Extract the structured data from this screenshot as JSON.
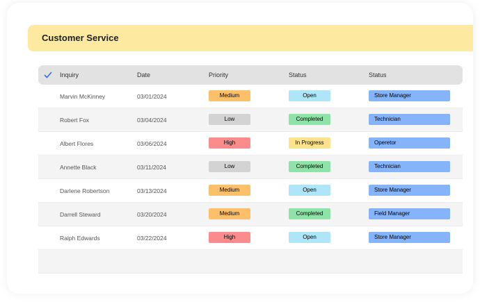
{
  "title": "Customer Service",
  "columns": [
    "Inquiry",
    "Date",
    "Priority",
    "Status",
    "Status"
  ],
  "colors": {
    "priority": {
      "Medium": "#fdc06a",
      "Low": "#d3d3d3",
      "High": "#fc8c8c"
    },
    "status": {
      "Open": "#aee5f8",
      "Completed": "#8fe3a8",
      "In Progress": "#fde38c"
    },
    "role": "#85b4fb"
  },
  "rows": [
    {
      "name": "Marvin McKinney",
      "date": "03/01/2024",
      "priority": "Medium",
      "status": "Open",
      "role": "Store Manager"
    },
    {
      "name": "Robert Fox",
      "date": "03/04/2024",
      "priority": "Low",
      "status": "Completed",
      "role": "Technician"
    },
    {
      "name": "Albert Flores",
      "date": "03/06/2024",
      "priority": "High",
      "status": "In Progress",
      "role": "Operetor"
    },
    {
      "name": "Annette Black",
      "date": "03/11/2024",
      "priority": "Low",
      "status": "Completed",
      "role": "Technician"
    },
    {
      "name": "Darlene Robertson",
      "date": "03/13/2024",
      "priority": "Medium",
      "status": "Open",
      "role": "Store Manager"
    },
    {
      "name": "Darrell Steward",
      "date": "03/20/2024",
      "priority": "Medium",
      "status": "Completed",
      "role": "Field Manager"
    },
    {
      "name": "Ralph Edwards",
      "date": "03/22/2024",
      "priority": "High",
      "status": "Open",
      "role": "Store Manager"
    }
  ]
}
